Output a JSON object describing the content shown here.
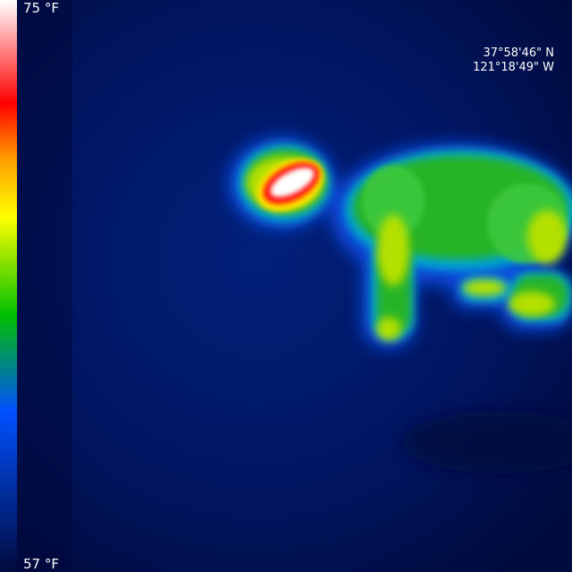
{
  "temperature_scale": {
    "max_label": "75 °F",
    "min_label": "57 °F",
    "palette": [
      "#ffffff",
      "#ff0000",
      "#ffa000",
      "#ffff00",
      "#00c000",
      "#0050ff",
      "#000a3c"
    ]
  },
  "gps": {
    "latitude": "37°58'46\" N",
    "longitude": "121°18'49\" W"
  },
  "scene": {
    "background_color": "#000a3c",
    "subject_icon": "cat-thermal-silhouette"
  }
}
